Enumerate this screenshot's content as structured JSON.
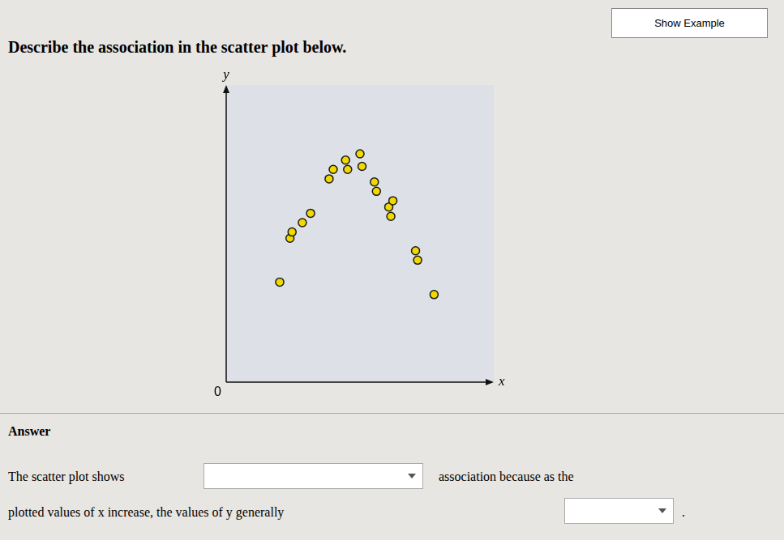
{
  "chart_data": {
    "type": "scatter",
    "title": "Describe the association in the scatter plot below.",
    "xlabel": "x",
    "ylabel": "y",
    "x": [
      1.8,
      2.05,
      2.1,
      2.35,
      2.55,
      3.0,
      3.1,
      3.4,
      3.45,
      3.75,
      3.8,
      4.1,
      4.15,
      4.45,
      4.5,
      4.55,
      5.1,
      5.15,
      5.55
    ],
    "values": [
      3.2,
      4.6,
      4.8,
      5.1,
      5.4,
      6.5,
      6.8,
      7.1,
      6.8,
      7.3,
      6.9,
      6.4,
      6.1,
      5.6,
      5.3,
      5.8,
      4.2,
      3.9,
      2.8
    ],
    "color": "#f0d800",
    "xlim": [
      0.5,
      7.0
    ],
    "ylim": [
      0.0,
      9.5
    ],
    "grid": false,
    "tick_labels": false,
    "annotations": [
      "Show Example",
      "0",
      "Answer",
      "The scatter plot shows",
      "association because as the",
      "plotted values of x increase, the values of y generally",
      "."
    ]
  }
}
